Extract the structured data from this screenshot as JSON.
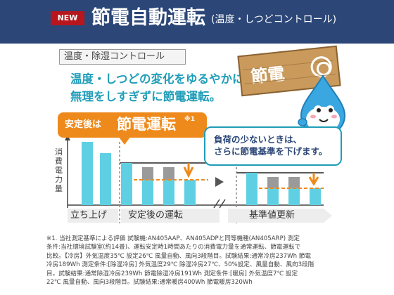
{
  "header": {
    "badge": "NEW",
    "title": "節電自動運転",
    "subtitle": "(温度・しつどコントロール)"
  },
  "section": {
    "box_label": "温度・除湿コントロール",
    "lead": [
      "温度・しつどの変化をゆるやかに、",
      "無理をしすぎずに節電運転。"
    ]
  },
  "sign": {
    "text": "節電"
  },
  "callout_orange": {
    "prefix": "安定後は",
    "emphasis": "節電運転",
    "note": "※1"
  },
  "callout_white": {
    "lines": [
      "負荷の少ないときは、",
      "さらに節電基準を下げます。"
    ]
  },
  "chart": {
    "ylabel": "消費電力量"
  },
  "phases": [
    "立ち上げ",
    "安定後の運転",
    "基準値更新"
  ],
  "colors": {
    "header_bg": "#2b4677",
    "accent_blue": "#1f9db8",
    "accent_orange": "#ee8a1c",
    "bar_blue": "#5fd0e3",
    "bar_gray": "#9a9a9a",
    "badge_red": "#b8161d"
  },
  "notes": [
    "※1. 当社測定基準による評価 試験機:AN405AAP、AN405ADPと同等機種(AN405ARP) 測定",
    "条件:当社環境試験室(約14畳)、運転安定時1時間あたりの消費電力量を通常運転、節電運転で",
    "比較。【冷房】外気温度35℃ 設定26℃ 風量自動、風向3段階目。試験結果:通常冷房237Wh 節電",
    "冷房189Wh 測定条件:[除湿冷房] 外気温度29℃ 除湿冷房27℃、50%設定、風量自動、風向3段階",
    "目。試験結果:通常除湿冷房239Wh 節電除湿冷房191Wh 測定条件:[暖房] 外気温度7℃ 設定",
    "22℃ 風量自動、風向3段階目。試験結果:通常暖房400Wh 節電暖房320Wh"
  ]
}
